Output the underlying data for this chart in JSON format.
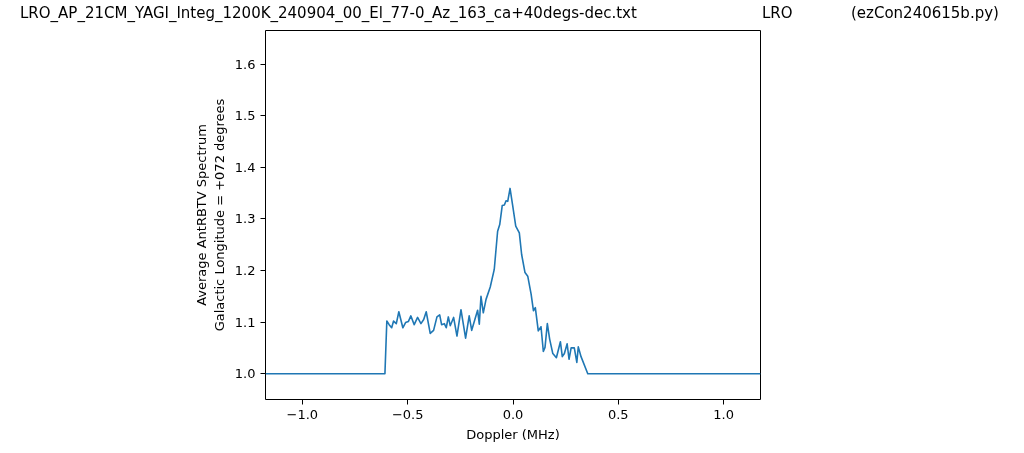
{
  "chart_data": {
    "type": "line",
    "title": "LRO_AP_21CM_YAGI_Integ_1200K_240904_00_El_77-0_Az_163_ca+40degs-dec.txt",
    "annotations": [
      "LRO",
      "(ezCon240615b.py)"
    ],
    "xlabel": "Doppler (MHz)",
    "ylabel": "Average AntRBTV Spectrum\nGalactic Longitude = +072 degrees",
    "xlim": [
      -1.175,
      1.175
    ],
    "ylim": [
      0.95,
      1.665
    ],
    "xticks": [
      {
        "value": -1.0,
        "label": "−1.0"
      },
      {
        "value": -0.5,
        "label": "−0.5"
      },
      {
        "value": 0.0,
        "label": "0.0"
      },
      {
        "value": 0.5,
        "label": "0.5"
      },
      {
        "value": 1.0,
        "label": "1.0"
      }
    ],
    "yticks": [
      {
        "value": 1.0,
        "label": "1.0"
      },
      {
        "value": 1.1,
        "label": "1.1"
      },
      {
        "value": 1.2,
        "label": "1.2"
      },
      {
        "value": 1.3,
        "label": "1.3"
      },
      {
        "value": 1.4,
        "label": "1.4"
      },
      {
        "value": 1.5,
        "label": "1.5"
      },
      {
        "value": 1.6,
        "label": "1.6"
      }
    ],
    "grid": false,
    "series": [
      {
        "color": "#1f77b4",
        "x": [
          -1.175,
          -0.608,
          -0.599,
          -0.588,
          -0.576,
          -0.567,
          -0.554,
          -0.542,
          -0.523,
          -0.51,
          -0.497,
          -0.485,
          -0.469,
          -0.453,
          -0.437,
          -0.424,
          -0.412,
          -0.393,
          -0.377,
          -0.361,
          -0.348,
          -0.339,
          -0.326,
          -0.317,
          -0.307,
          -0.298,
          -0.282,
          -0.266,
          -0.247,
          -0.225,
          -0.208,
          -0.196,
          -0.181,
          -0.168,
          -0.16,
          -0.152,
          -0.141,
          -0.128,
          -0.108,
          -0.089,
          -0.073,
          -0.063,
          -0.051,
          -0.041,
          -0.033,
          -0.025,
          -0.014,
          -0.002,
          0.013,
          0.03,
          0.041,
          0.057,
          0.07,
          0.086,
          0.097,
          0.106,
          0.12,
          0.133,
          0.144,
          0.152,
          0.163,
          0.174,
          0.189,
          0.206,
          0.225,
          0.234,
          0.244,
          0.257,
          0.266,
          0.276,
          0.291,
          0.303,
          0.31,
          0.323,
          0.355,
          1.175
        ],
        "values": [
          1.0,
          1.0,
          1.102,
          1.095,
          1.089,
          1.102,
          1.097,
          1.12,
          1.089,
          1.099,
          1.101,
          1.112,
          1.095,
          1.109,
          1.097,
          1.105,
          1.12,
          1.078,
          1.084,
          1.11,
          1.114,
          1.095,
          1.097,
          1.089,
          1.11,
          1.093,
          1.109,
          1.073,
          1.124,
          1.069,
          1.112,
          1.084,
          1.105,
          1.123,
          1.096,
          1.15,
          1.118,
          1.144,
          1.168,
          1.202,
          1.276,
          1.289,
          1.326,
          1.327,
          1.335,
          1.334,
          1.359,
          1.327,
          1.286,
          1.273,
          1.231,
          1.196,
          1.189,
          1.154,
          1.122,
          1.128,
          1.083,
          1.091,
          1.043,
          1.051,
          1.097,
          1.067,
          1.039,
          1.031,
          1.062,
          1.033,
          1.039,
          1.058,
          1.028,
          1.05,
          1.05,
          1.022,
          1.052,
          1.033,
          1.0,
          1.0
        ]
      }
    ]
  }
}
